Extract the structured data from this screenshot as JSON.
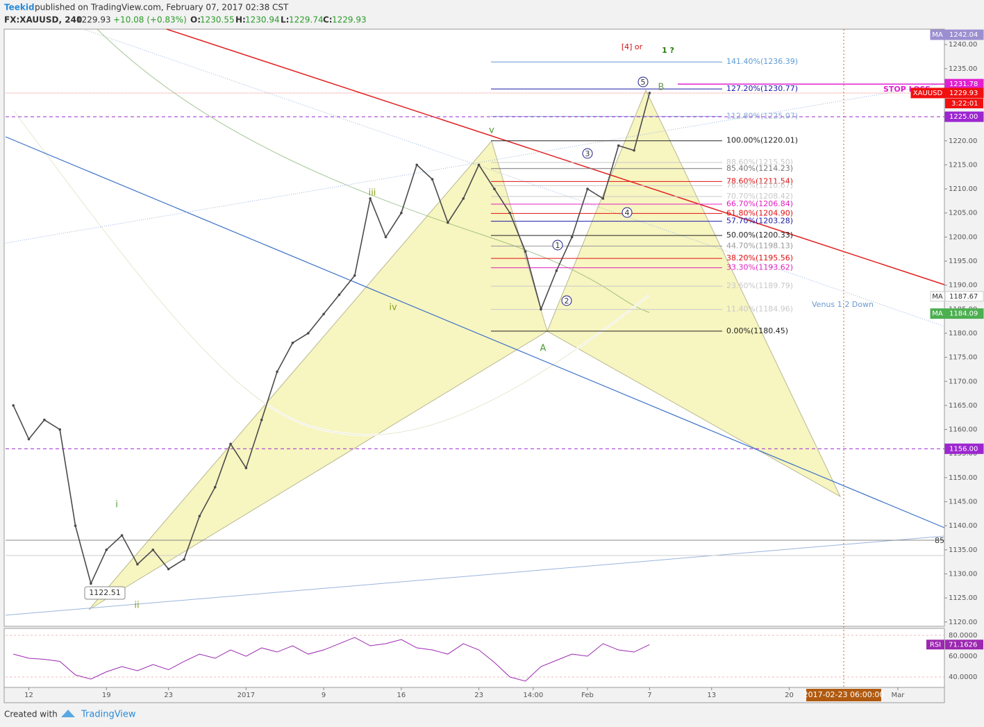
{
  "header": {
    "author": "Teekid",
    "byline": "published on TradingView.com, February 07, 2017 02:38 CST",
    "symbol": "FX:XAUUSD, 240",
    "last": "1229.93",
    "change": "+10.08 (+0.83%)",
    "open_label": "O:",
    "open": "1230.55",
    "high_label": "H:",
    "high": "1230.94",
    "low_label": "L:",
    "low": "1229.74",
    "close_label": "C:",
    "close": "1229.93"
  },
  "chart_data": {
    "type": "line",
    "x": [
      -1,
      0,
      1,
      2,
      3,
      4,
      5,
      6,
      7,
      8,
      9,
      10,
      11,
      12,
      13,
      14,
      15,
      16,
      17,
      18,
      19,
      20,
      21,
      22,
      23,
      24,
      25,
      26,
      27,
      28,
      29,
      30,
      31,
      32,
      33,
      34,
      35,
      36,
      37,
      38,
      39,
      40
    ],
    "series": [
      {
        "name": "XAUUSD",
        "color": "#4a4a4a",
        "values": [
          1165,
          1158,
          1162,
          1160,
          1140,
          1128,
          1135,
          1138,
          1132,
          1135,
          1131,
          1133,
          1142,
          1148,
          1157,
          1152,
          1162,
          1172,
          1178,
          1180,
          1184,
          1188,
          1192,
          1208,
          1200,
          1205,
          1215,
          1212,
          1203,
          1208,
          1215,
          1210,
          1205,
          1197,
          1185,
          1193,
          1200,
          1210,
          1208,
          1219,
          1218,
          1229.93
        ]
      }
    ],
    "xlim": [
      -1.5,
      59
    ],
    "xticks": [
      {
        "value": 0,
        "label": "12"
      },
      {
        "value": 5,
        "label": "19"
      },
      {
        "value": 9,
        "label": "23"
      },
      {
        "value": 14,
        "label": "2017"
      },
      {
        "value": 19,
        "label": "9"
      },
      {
        "value": 24,
        "label": "16"
      },
      {
        "value": 29,
        "label": "23"
      },
      {
        "value": 32.5,
        "label": "14:00"
      },
      {
        "value": 36,
        "label": "Feb"
      },
      {
        "value": 40,
        "label": "7"
      },
      {
        "value": 44,
        "label": "13"
      },
      {
        "value": 49,
        "label": "20"
      },
      {
        "value": 56,
        "label": "Mar"
      }
    ],
    "ylim": [
      1119.1,
      1243.2
    ],
    "yticks": [
      {
        "value": 1120,
        "label": "1120.00"
      },
      {
        "value": 1125,
        "label": "1125.00"
      },
      {
        "value": 1130,
        "label": "1130.00"
      },
      {
        "value": 1135,
        "label": "1135.00"
      },
      {
        "value": 1140,
        "label": "1140.00"
      },
      {
        "value": 1145,
        "label": "1145.00"
      },
      {
        "value": 1150,
        "label": "1150.00"
      },
      {
        "value": 1155,
        "label": "1155.00"
      },
      {
        "value": 1160,
        "label": "1160.00"
      },
      {
        "value": 1165,
        "label": "1165.00"
      },
      {
        "value": 1170,
        "label": "1170.00"
      },
      {
        "value": 1175,
        "label": "1175.00"
      },
      {
        "value": 1180,
        "label": "1180.00"
      },
      {
        "value": 1185,
        "label": "1185.00"
      },
      {
        "value": 1190,
        "label": "1190.00"
      },
      {
        "value": 1195,
        "label": "1195.00"
      },
      {
        "value": 1200,
        "label": "1200.00"
      },
      {
        "value": 1205,
        "label": "1205.00"
      },
      {
        "value": 1210,
        "label": "1210.00"
      },
      {
        "value": 1215,
        "label": "1215.00"
      },
      {
        "value": 1220,
        "label": "1220.00"
      },
      {
        "value": 1225,
        "label": "1225.00"
      },
      {
        "value": 1230,
        "label": "1230.00"
      },
      {
        "value": 1235,
        "label": "1235.00"
      },
      {
        "value": 1240,
        "label": "1240.00"
      }
    ],
    "fib_levels": [
      {
        "label": "141.40%(1236.39)",
        "value": 1236.39,
        "color": "#5b9bd5"
      },
      {
        "label": "127.20%(1230.77)",
        "value": 1230.77,
        "color": "#1a1aa8"
      },
      {
        "label": "112.80%(1225.07)",
        "value": 1225.07,
        "color": "#8aa8d8"
      },
      {
        "label": "100.00%(1220.01)",
        "value": 1220.01,
        "color": "#222222"
      },
      {
        "label": "88.60%(1215.50)",
        "value": 1215.5,
        "color": "#c8c8c8"
      },
      {
        "label": "85.40%(1214.23)",
        "value": 1214.23,
        "color": "#777777"
      },
      {
        "label": "78.60%(1211.54)",
        "value": 1211.54,
        "color": "#e01010"
      },
      {
        "label": "76.40%(1210.67)",
        "value": 1210.67,
        "color": "#c8c8c8"
      },
      {
        "label": "70.70%(1208.42)",
        "value": 1208.42,
        "color": "#c8c8c8"
      },
      {
        "label": "66.70%(1206.84)",
        "value": 1206.84,
        "color": "#e020c0"
      },
      {
        "label": "61.80%(1204.90)",
        "value": 1204.9,
        "color": "#e01010"
      },
      {
        "label": "57.70%(1203.28)",
        "value": 1203.28,
        "color": "#1a1aa8"
      },
      {
        "label": "50.00%(1200.33)",
        "value": 1200.33,
        "color": "#222222"
      },
      {
        "label": "44.70%(1198.13)",
        "value": 1198.13,
        "color": "#999999"
      },
      {
        "label": "38.20%(1195.56)",
        "value": 1195.56,
        "color": "#e01010"
      },
      {
        "label": "33.30%(1193.62)",
        "value": 1193.62,
        "color": "#e020c0"
      },
      {
        "label": "23.60%(1189.79)",
        "value": 1189.79,
        "color": "#c8c8c8"
      },
      {
        "label": "11.40%(1184.96)",
        "value": 1184.96,
        "color": "#c8c8c8"
      },
      {
        "label": "0.00%(1180.45)",
        "value": 1180.45,
        "color": "#222222"
      }
    ],
    "price_tags": [
      {
        "text": "MA",
        "label": "1242.04",
        "value": 1242.04,
        "color": "#9c8fd0",
        "line": "none"
      },
      {
        "label": "1231.78",
        "value": 1231.78,
        "color": "#e020d0",
        "line": "partial"
      },
      {
        "text": "XAUUSD",
        "label": "1229.93",
        "value": 1229.93,
        "color": "#f01010",
        "line": "thin"
      },
      {
        "label": "1225.00",
        "value": 1225,
        "color": "#9c27d0",
        "line": "dashed"
      },
      {
        "text": "MA",
        "label": "1187.67",
        "value": 1187.67,
        "color": "#ffffff",
        "line": "none"
      },
      {
        "text": "MA",
        "label": "1184.09",
        "value": 1184.09,
        "color": "#4caf50",
        "line": "none"
      },
      {
        "label": "1156.00",
        "value": 1156,
        "color": "#9c27d0",
        "line": "dashed"
      }
    ],
    "countdown": "3:22:01"
  },
  "rsi": {
    "name": "RSI",
    "value_label": "71.1626",
    "color": "#9c27b0",
    "ylim": [
      30,
      86.7
    ],
    "yticks": [
      {
        "value": 80,
        "label": "80.0000"
      },
      {
        "value": 60,
        "label": "60.0000"
      },
      {
        "value": 40,
        "label": "40.0000"
      }
    ],
    "values": [
      62,
      58,
      57,
      55,
      42,
      38,
      45,
      50,
      46,
      52,
      47,
      55,
      62,
      58,
      66,
      60,
      68,
      64,
      70,
      62,
      66,
      72,
      78,
      70,
      72,
      76,
      68,
      66,
      62,
      72,
      66,
      54,
      40,
      36,
      50,
      56,
      62,
      60,
      72,
      66,
      64,
      71.1626
    ]
  },
  "annotations": {
    "wave_v": "v",
    "wave_iii": "iii",
    "wave_iv": "iv",
    "wave_i": "i",
    "wave_ii": "ii",
    "point_a": "A",
    "point_b": "B",
    "alt_count": "[4] or",
    "wave_1q": "1 ?",
    "w1": "1",
    "w2": "2",
    "w3": "3",
    "w4": "4",
    "w5": "5",
    "venus": "Venus 1:2 Down",
    "stop": "STOP LOSS",
    "low_tag": "1122.51",
    "gray_level": "85"
  },
  "cursor_date": "2017-02-23 06:00:00",
  "footer": {
    "created": "Created with",
    "brand": "TradingView"
  }
}
